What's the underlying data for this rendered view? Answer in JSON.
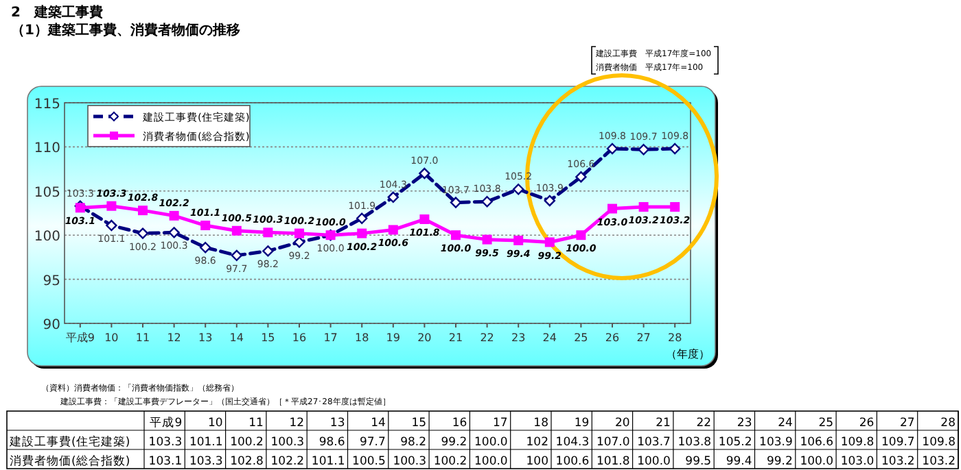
{
  "chart_data": [
    {
      "type": "line",
      "title": "2　建築工事費",
      "subtitle": "（1）建築工事費、消費者物価の推移",
      "categories": [
        "平成9",
        "10",
        "11",
        "12",
        "13",
        "14",
        "15",
        "16",
        "17",
        "18",
        "19",
        "20",
        "21",
        "22",
        "23",
        "24",
        "25",
        "26",
        "27",
        "28"
      ],
      "xlabel": "（年度）",
      "ylim": [
        90,
        115
      ],
      "yticks": [
        90,
        95,
        100,
        105,
        110,
        115
      ],
      "grid": "y",
      "legend": "top left",
      "series": [
        {
          "name": "建設工事費(住宅建築)",
          "color": "#000080",
          "marker": "diamond",
          "line_style": "dashed",
          "values": [
            103.3,
            101.1,
            100.2,
            100.3,
            98.6,
            97.7,
            98.2,
            99.2,
            100.0,
            101.9,
            104.3,
            107.0,
            103.7,
            103.8,
            105.2,
            103.9,
            106.6,
            109.8,
            109.7,
            109.8
          ],
          "value_labels": [
            "103.3",
            "101.1",
            "100.2",
            "100.3",
            "98.6",
            "97.7",
            "98.2",
            "99.2",
            "100.0",
            "101.9",
            "104.3",
            "107.0",
            "103.7",
            "103.8",
            "105.2",
            "103.9",
            "106.6",
            "109.8",
            "109.7",
            "109.8"
          ]
        },
        {
          "name": "消費者物価(総合指数)",
          "color": "#ff00ff",
          "marker": "square",
          "line_style": "solid",
          "values": [
            103.1,
            103.3,
            102.8,
            102.2,
            101.1,
            100.5,
            100.3,
            100.2,
            100.0,
            100.2,
            100.6,
            101.8,
            100.0,
            99.5,
            99.4,
            99.2,
            100.0,
            103.0,
            103.2,
            103.2
          ],
          "value_labels": [
            "103.1",
            "103.3",
            "102.8",
            "102.2",
            "101.1",
            "100.5",
            "100.3",
            "100.2",
            "100.0",
            "100.2",
            "100.6",
            "101.8",
            "100.0",
            "99.5",
            "99.4",
            "99.2",
            "100.0",
            "103.0",
            "103.2",
            "103.2"
          ]
        }
      ],
      "annotations": [
        "建設工事費　平成17年度=100",
        "消費者物価　平成17年=100",
        "（資料）消費者物価：「消費者物価指数」（総務省）",
        "建設工事費：「建設工事費デフレーター」（国土交通省）［＊平成27･28年度は暫定値］"
      ]
    },
    {
      "type": "other",
      "annotations": [
        "建設工事費(住宅建築)",
        "103.3",
        "101.1",
        "100.2",
        "100.3",
        "98.6",
        "97.7",
        "98.2",
        "99.2",
        "100.0",
        "102",
        "104.3",
        "107.0",
        "103.7",
        "103.8",
        "105.2",
        "103.9",
        "106.6",
        "109.8",
        "109.7",
        "109.8",
        "消費者物価(総合指数)",
        "103.1",
        "103.3",
        "102.8",
        "102.2",
        "101.1",
        "100.5",
        "100.3",
        "100.2",
        "100.0",
        "100",
        "100.6",
        "101.8",
        "100.0",
        "99.5",
        "99.4",
        "99.2",
        "100.0",
        "103.0",
        "103.2",
        "103.2"
      ]
    }
  ]
}
